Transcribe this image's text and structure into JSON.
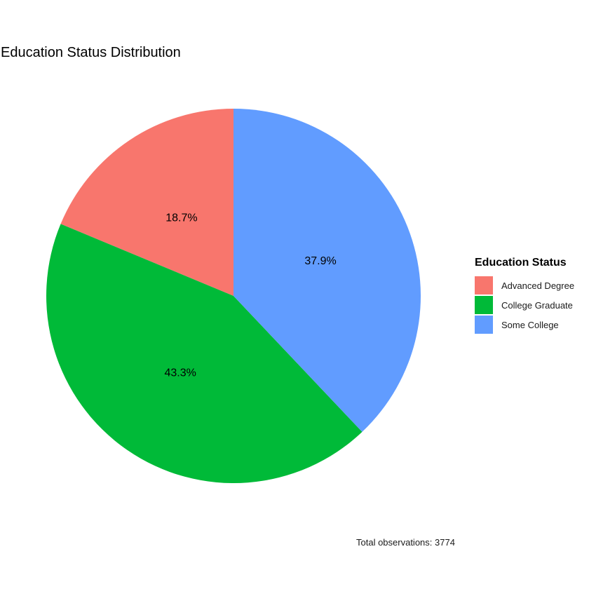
{
  "chart_data": {
    "type": "pie",
    "title": "Education Status Distribution",
    "caption": "Total observations: 3774",
    "legend": {
      "title": "Education Status",
      "placement": "right"
    },
    "slices": [
      {
        "label": "Advanced Degree",
        "value": 18.7,
        "display": "18.7%",
        "color": "#F8766D"
      },
      {
        "label": "College Graduate",
        "value": 43.3,
        "display": "43.3%",
        "color": "#00BA38"
      },
      {
        "label": "Some College",
        "value": 37.9,
        "display": "37.9%",
        "color": "#619CFF"
      }
    ]
  }
}
